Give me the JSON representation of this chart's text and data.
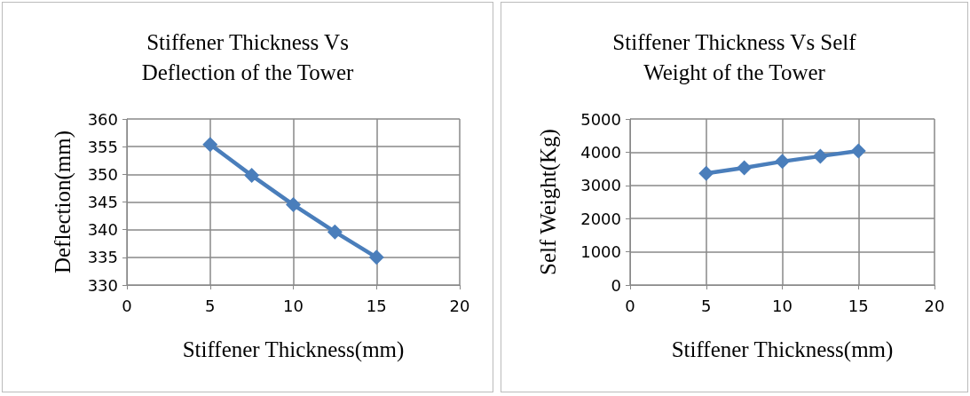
{
  "chart_data": [
    {
      "type": "line",
      "title": "Stiffener Thickness Vs\nDeflection of the Tower",
      "xlabel": "Stiffener Thickness(mm)",
      "ylabel": "Deflection(mm)",
      "x": [
        5,
        7.5,
        10,
        12.5,
        15
      ],
      "series": [
        {
          "color": "#4a7ebb",
          "values": [
            355.4,
            349.8,
            344.5,
            339.6,
            335.0
          ]
        }
      ],
      "xlim": [
        0,
        20
      ],
      "xticks": [
        0,
        5,
        10,
        15,
        20
      ],
      "ylim": [
        330,
        360
      ],
      "yticks": [
        330,
        335,
        340,
        345,
        350,
        355,
        360
      ],
      "grid": true,
      "marker": "diamond",
      "line_style": "solid"
    },
    {
      "type": "line",
      "title": "Stiffener Thickness Vs Self\nWeight of the Tower",
      "xlabel": "Stiffener Thickness(mm)",
      "ylabel": "Self Weight(Kg)",
      "x": [
        5,
        7.5,
        10,
        12.5,
        15
      ],
      "series": [
        {
          "color": "#4a7ebb",
          "values": [
            3360,
            3530,
            3720,
            3880,
            4040
          ]
        }
      ],
      "xlim": [
        0,
        20
      ],
      "xticks": [
        0,
        5,
        10,
        15,
        20
      ],
      "ylim": [
        0,
        5000
      ],
      "yticks": [
        0,
        1000,
        2000,
        3000,
        4000,
        5000
      ],
      "grid": true,
      "marker": "diamond",
      "line_style": "solid"
    }
  ]
}
